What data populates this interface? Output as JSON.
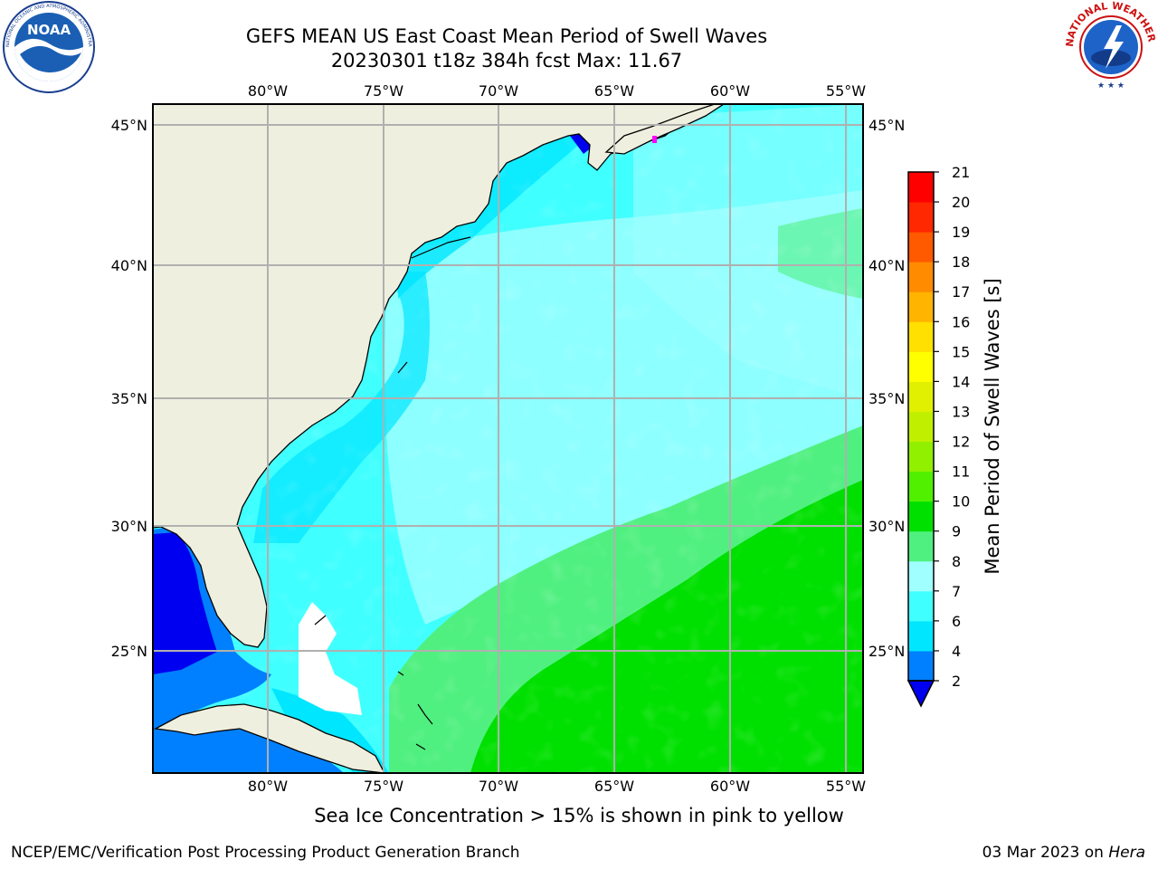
{
  "header": {
    "title_line1": "GEFS MEAN US East Coast Mean Period of Swell Waves",
    "title_line2": "20230301 t18z 384h fcst   Max: 11.67"
  },
  "logos": {
    "left": "NOAA",
    "left_ring_text": "NATIONAL OCEANIC AND ATMOSPHERIC ADMINISTRATION · U.S. DEPARTMENT OF COMMERCE",
    "right_ring_text": "NATIONAL WEATHER SERVICE"
  },
  "map": {
    "lon_labels": [
      "80°W",
      "75°W",
      "70°W",
      "65°W",
      "60°W",
      "55°W"
    ],
    "lat_labels": [
      "45°N",
      "40°N",
      "35°N",
      "30°N",
      "25°N"
    ],
    "colors": {
      "land": "#efefdf",
      "frame": "#000000",
      "grid": "#b0b0b0"
    }
  },
  "colorbar": {
    "label": "Mean Period of Swell Waves [s]",
    "ticks": [
      "2",
      "4",
      "6",
      "7",
      "8",
      "9",
      "10",
      "11",
      "12",
      "13",
      "14",
      "15",
      "16",
      "17",
      "18",
      "19",
      "20",
      "21"
    ],
    "colors": [
      "#0000f0",
      "#0080ff",
      "#00e6ff",
      "#40ffff",
      "#a0ffff",
      "#50f080",
      "#00e000",
      "#50f000",
      "#90f000",
      "#c0f000",
      "#e0f000",
      "#ffff00",
      "#ffe000",
      "#ffb400",
      "#ff8c00",
      "#ff5a00",
      "#ff2800",
      "#ff0000"
    ]
  },
  "ice_note": "Sea Ice Concentration > 15% is shown in pink to yellow",
  "footer": {
    "left": "NCEP/EMC/Verification Post Processing Product Generation Branch",
    "date": "03 Mar 2023 on",
    "host": "Hera"
  }
}
